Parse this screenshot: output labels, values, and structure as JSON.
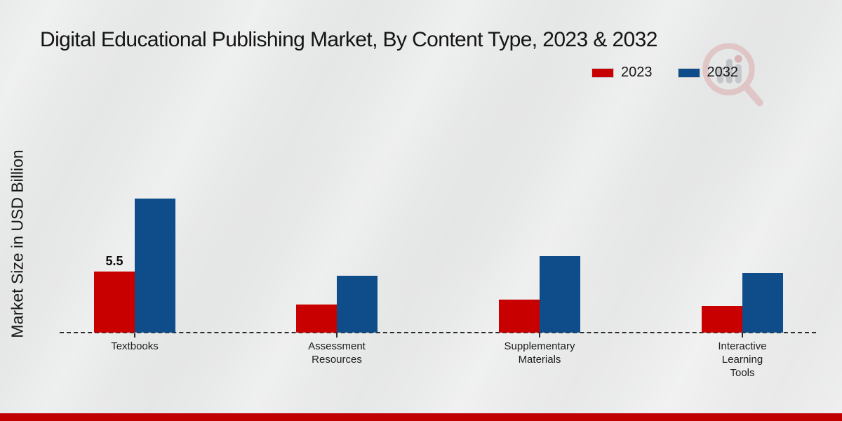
{
  "chart_data": {
    "type": "bar",
    "title": "Digital Educational Publishing Market, By Content Type, 2023 & 2032",
    "xlabel": "",
    "ylabel": "Market Size in USD Billion",
    "categories": [
      "Textbooks",
      "Assessment Resources",
      "Supplementary Materials",
      "Interactive Learning Tools"
    ],
    "series": [
      {
        "name": "2023",
        "color": "#c80000",
        "values": [
          5.5,
          2.5,
          3.0,
          2.4
        ],
        "value_labels": [
          "5.5",
          "",
          "",
          ""
        ]
      },
      {
        "name": "2032",
        "color": "#0e4d8a",
        "values": [
          12.1,
          5.1,
          6.9,
          5.4
        ],
        "value_labels": [
          "",
          "",
          "",
          ""
        ]
      }
    ],
    "ylim": [
      0,
      13
    ],
    "grid": false,
    "legend_position": "top-right",
    "x_axis_style": "dashed"
  },
  "branding": {
    "watermark_icon": "magnifier-bar-chart-logo",
    "footer_color": "#c00000"
  }
}
